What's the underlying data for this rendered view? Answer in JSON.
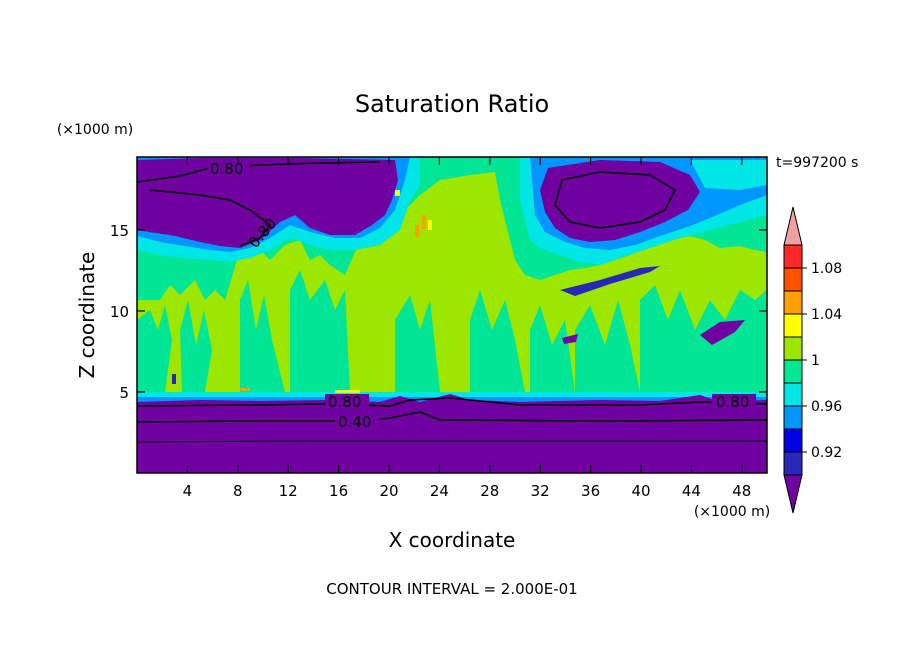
{
  "chart_data": {
    "type": "heatmap",
    "title": "Saturation Ratio",
    "time_label": "t=997200 s",
    "xlabel": "X coordinate",
    "ylabel": "Z coordinate",
    "x_unit": "(×1000 m)",
    "y_unit": "(×1000 m)",
    "xlim": [
      0,
      50
    ],
    "ylim": [
      0,
      19.5
    ],
    "x_ticks": [
      4,
      8,
      12,
      16,
      20,
      24,
      28,
      32,
      36,
      40,
      44,
      48
    ],
    "y_ticks": [
      5,
      10,
      15
    ],
    "footer": "CONTOUR INTERVAL = 2.000E-01",
    "contour_labels": [
      "0.80",
      "0.80",
      "0.80",
      "0.80",
      "0.40"
    ],
    "colorbar": {
      "levels": [
        0.9,
        0.92,
        0.94,
        0.96,
        0.98,
        1.0,
        1.02,
        1.04,
        1.06,
        1.08,
        1.1
      ],
      "tick_labels": [
        "0.92",
        "0.96",
        "1",
        "1.04",
        "1.08"
      ],
      "tick_values": [
        0.92,
        0.96,
        1.0,
        1.04,
        1.08
      ],
      "colors": [
        "#7000A0",
        "#2828B8",
        "#0000E6",
        "#0096FF",
        "#00E6E6",
        "#00E696",
        "#9CE600",
        "#FFFF00",
        "#FFA000",
        "#FF5000",
        "#FF2828",
        "#F0A0A0"
      ]
    },
    "regions": {
      "lower_layer": {
        "z_range": [
          0,
          4.8
        ],
        "value": "< 0.90"
      },
      "upper_dry_left": {
        "x_range": [
          0,
          21
        ],
        "z_range": [
          15,
          19.5
        ],
        "value": "< 0.90"
      },
      "upper_dry_right": {
        "x_range": [
          30,
          43
        ],
        "z_range": [
          14,
          19.5
        ],
        "value": "< 0.90"
      },
      "supersaturated_band": {
        "z_range": [
          5,
          16
        ],
        "value": "1.00-1.02"
      },
      "near_saturation_band": {
        "z_range": [
          5,
          18
        ],
        "value": "0.98-1.00"
      }
    }
  }
}
